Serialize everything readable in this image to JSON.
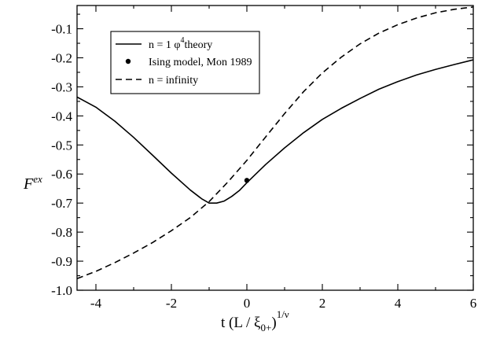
{
  "chart_data": {
    "type": "line",
    "title": "",
    "xlabel": "t (L / ξ0+)1/ν",
    "xlabel_parts": {
      "main": "t (L / ξ",
      "sub": "0+",
      "close": ")",
      "sup": "1/ν"
    },
    "ylabel": "Fex",
    "ylabel_parts": {
      "main": "F",
      "sup": "ex"
    },
    "xlim": [
      -4.5,
      6
    ],
    "ylim": [
      -1.0,
      -0.02
    ],
    "x_ticks": [
      -4,
      -2,
      0,
      2,
      4,
      6
    ],
    "x_tick_labels": [
      "-4",
      "-2",
      "0",
      "2",
      "4",
      "6"
    ],
    "y_ticks": [
      -1.0,
      -0.9,
      -0.8,
      -0.7,
      -0.6,
      -0.5,
      -0.4,
      -0.3,
      -0.2,
      -0.1
    ],
    "y_tick_labels": [
      "-1.0",
      "-0.9",
      "-0.8",
      "-0.7",
      "-0.6",
      "-0.5",
      "-0.4",
      "-0.3",
      "-0.2",
      "-0.1"
    ],
    "grid": false,
    "legend_position": "top-left",
    "series": [
      {
        "name": "n = 1   φ4theory",
        "name_parts": {
          "main": "n = 1   φ",
          "sup": "4",
          "rest": "theory"
        },
        "style": "solid",
        "x": [
          -4.5,
          -4.0,
          -3.5,
          -3.0,
          -2.5,
          -2.0,
          -1.5,
          -1.2,
          -1.0,
          -0.8,
          -0.6,
          -0.4,
          -0.2,
          0.0,
          0.3,
          0.5,
          1.0,
          1.5,
          2.0,
          2.5,
          3.0,
          3.5,
          4.0,
          4.5,
          5.0,
          5.5,
          6.0
        ],
        "y": [
          -0.335,
          -0.37,
          -0.418,
          -0.474,
          -0.535,
          -0.597,
          -0.655,
          -0.685,
          -0.7,
          -0.7,
          -0.693,
          -0.677,
          -0.657,
          -0.63,
          -0.592,
          -0.567,
          -0.51,
          -0.458,
          -0.412,
          -0.374,
          -0.34,
          -0.308,
          -0.282,
          -0.259,
          -0.24,
          -0.223,
          -0.207
        ]
      },
      {
        "name": "Ising model, Mon 1989",
        "style": "marker",
        "x": [
          0.0
        ],
        "y": [
          -0.622
        ]
      },
      {
        "name": "n = infinity",
        "style": "dashed",
        "x": [
          -4.5,
          -4.0,
          -3.5,
          -3.0,
          -2.5,
          -2.0,
          -1.5,
          -1.0,
          -0.5,
          0.0,
          0.5,
          1.0,
          1.5,
          2.0,
          2.5,
          3.0,
          3.5,
          4.0,
          4.5,
          5.0,
          5.5,
          6.0
        ],
        "y": [
          -0.96,
          -0.935,
          -0.905,
          -0.872,
          -0.836,
          -0.795,
          -0.75,
          -0.695,
          -0.627,
          -0.553,
          -0.472,
          -0.392,
          -0.317,
          -0.252,
          -0.198,
          -0.152,
          -0.115,
          -0.086,
          -0.063,
          -0.045,
          -0.033,
          -0.025
        ]
      }
    ]
  }
}
